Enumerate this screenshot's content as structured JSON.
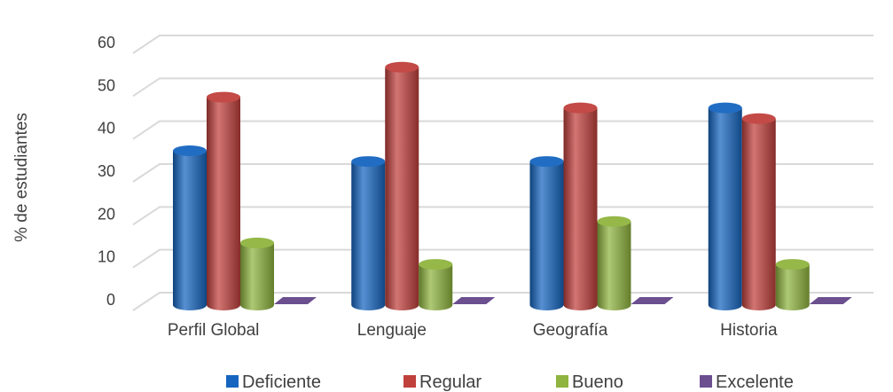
{
  "chart_data": {
    "type": "bar",
    "style": "3d-cylinder",
    "categories": [
      "Perfil Global",
      "Lenguaje",
      "Geografía",
      "Historia"
    ],
    "series": [
      {
        "name": "Deficiente",
        "color": "#1565c0",
        "values": [
          36,
          33.5,
          33.5,
          46
        ]
      },
      {
        "name": "Regular",
        "color": "#c0403c",
        "values": [
          48.5,
          55.5,
          46,
          43.5
        ]
      },
      {
        "name": "Bueno",
        "color": "#8fb43f",
        "values": [
          14.5,
          9.5,
          19.5,
          9.5
        ]
      },
      {
        "name": "Excelente",
        "color": "#6b4f8f",
        "values": [
          0,
          0,
          0,
          0
        ]
      }
    ],
    "ylabel": "% de estudiantes",
    "xlabel": "",
    "title": "",
    "ylim": [
      0,
      60
    ],
    "yticks": [
      0,
      10,
      20,
      30,
      40,
      50,
      60
    ],
    "grid": true,
    "legend_position": "bottom"
  }
}
